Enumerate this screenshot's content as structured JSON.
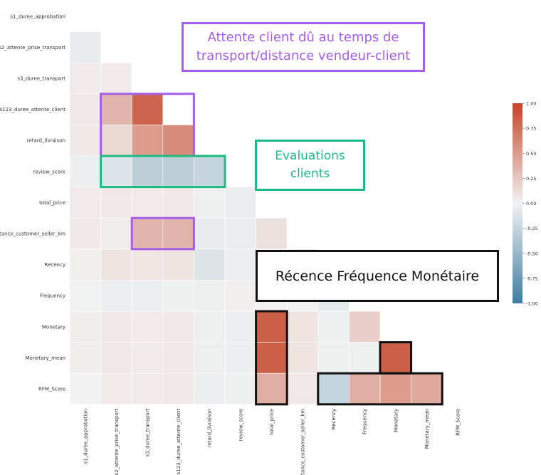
{
  "chart_data": {
    "type": "heatmap",
    "variables": [
      "s1_duree_approbation",
      "s2_attente_prise_transport",
      "s3_duree_transport",
      "s123_duree_attente_client",
      "retard_livraison",
      "review_score",
      "total_price",
      "distance_customer_seller_km",
      "Recency",
      "Frequency",
      "Monetary",
      "Monetary_mean",
      "RFM_Score"
    ],
    "matrix": [
      [
        null
      ],
      [
        -0.05,
        null
      ],
      [
        0.04,
        0.04,
        null
      ],
      [
        0.06,
        0.35,
        0.82,
        null
      ],
      [
        0.05,
        0.15,
        0.5,
        0.6,
        null
      ],
      [
        -0.03,
        -0.12,
        -0.3,
        -0.3,
        -0.25,
        null
      ],
      [
        0.04,
        0.06,
        0.04,
        0.05,
        -0.02,
        -0.04,
        null
      ],
      [
        0.05,
        0.03,
        0.35,
        0.35,
        -0.05,
        -0.04,
        0.1,
        null
      ],
      [
        0.02,
        0.08,
        0.07,
        0.08,
        -0.12,
        -0.03,
        0.0,
        0.08,
        null
      ],
      [
        -0.01,
        -0.03,
        -0.03,
        -0.02,
        -0.02,
        0.02,
        0.0,
        0.0,
        -0.08,
        null
      ],
      [
        0.03,
        0.05,
        0.04,
        0.05,
        -0.02,
        -0.03,
        0.85,
        0.08,
        -0.02,
        0.2,
        null
      ],
      [
        0.03,
        0.05,
        0.04,
        0.05,
        -0.02,
        -0.03,
        0.85,
        0.08,
        -0.02,
        -0.02,
        0.85,
        null
      ],
      [
        0.0,
        0.04,
        0.04,
        0.05,
        -0.03,
        -0.02,
        0.4,
        0.06,
        -0.25,
        0.4,
        0.5,
        0.42,
        null
      ]
    ],
    "colorbar": {
      "ticks": [
        "1.00",
        "0.75",
        "0.50",
        "0.25",
        "0.00",
        "-0.25",
        "-0.50",
        "-0.75",
        "-1.00"
      ],
      "min": -1,
      "max": 1,
      "low_color": "#3f7ca0",
      "mid_color": "#f2f2f2",
      "high_color": "#c4452a"
    }
  },
  "annotations": {
    "transport": "Attente client dû au temps de transport/distance vendeur-client",
    "evaluations": "Evaluations clients",
    "rfm": "Récence Fréquence Monétaire"
  },
  "colors": {
    "purple": "#a55ee8",
    "green": "#1dbb82",
    "black": "#111111"
  }
}
